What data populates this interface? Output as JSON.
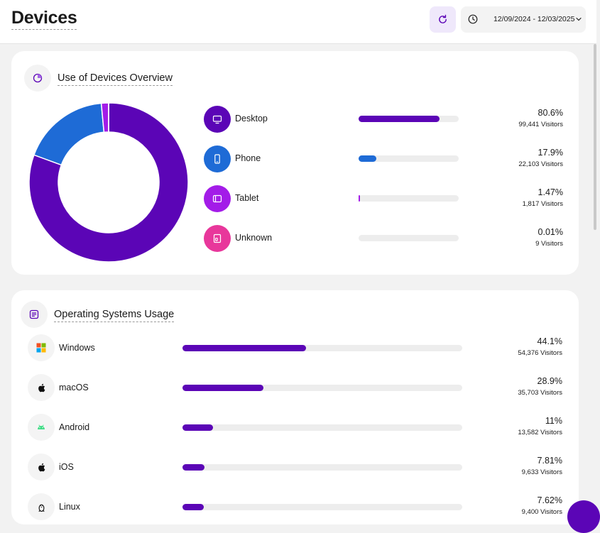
{
  "header": {
    "title": "Devices",
    "date_range": "12/09/2024 - 12/03/2025",
    "accent": "#5b05b6"
  },
  "devices_card": {
    "title": "Use of Devices Overview",
    "items": [
      {
        "label": "Desktop",
        "percent": "80.6%",
        "visitors": "99,441 Visitors",
        "share": 80.6,
        "color": "#5b05b6",
        "icon": "monitor-icon"
      },
      {
        "label": "Phone",
        "percent": "17.9%",
        "visitors": "22,103 Visitors",
        "share": 17.9,
        "color": "#1e6bd6",
        "icon": "phone-icon"
      },
      {
        "label": "Tablet",
        "percent": "1.47%",
        "visitors": "1,817 Visitors",
        "share": 1.47,
        "color": "#a31ce8",
        "icon": "tablet-icon"
      },
      {
        "label": "Unknown",
        "percent": "0.01%",
        "visitors": "9 Visitors",
        "share": 0.01,
        "color": "#e8379b",
        "icon": "unknown-device-icon"
      }
    ]
  },
  "os_card": {
    "title": "Operating Systems Usage",
    "items": [
      {
        "label": "Windows",
        "percent": "44.1%",
        "visitors": "54,376 Visitors",
        "share": 44.1,
        "icon": "windows-icon"
      },
      {
        "label": "macOS",
        "percent": "28.9%",
        "visitors": "35,703 Visitors",
        "share": 28.9,
        "icon": "apple-icon"
      },
      {
        "label": "Android",
        "percent": "11%",
        "visitors": "13,582 Visitors",
        "share": 11,
        "icon": "android-icon"
      },
      {
        "label": "iOS",
        "percent": "7.81%",
        "visitors": "9,633 Visitors",
        "share": 7.81,
        "icon": "apple-icon"
      },
      {
        "label": "Linux",
        "percent": "7.62%",
        "visitors": "9,400 Visitors",
        "share": 7.62,
        "icon": "linux-icon"
      }
    ]
  }
}
